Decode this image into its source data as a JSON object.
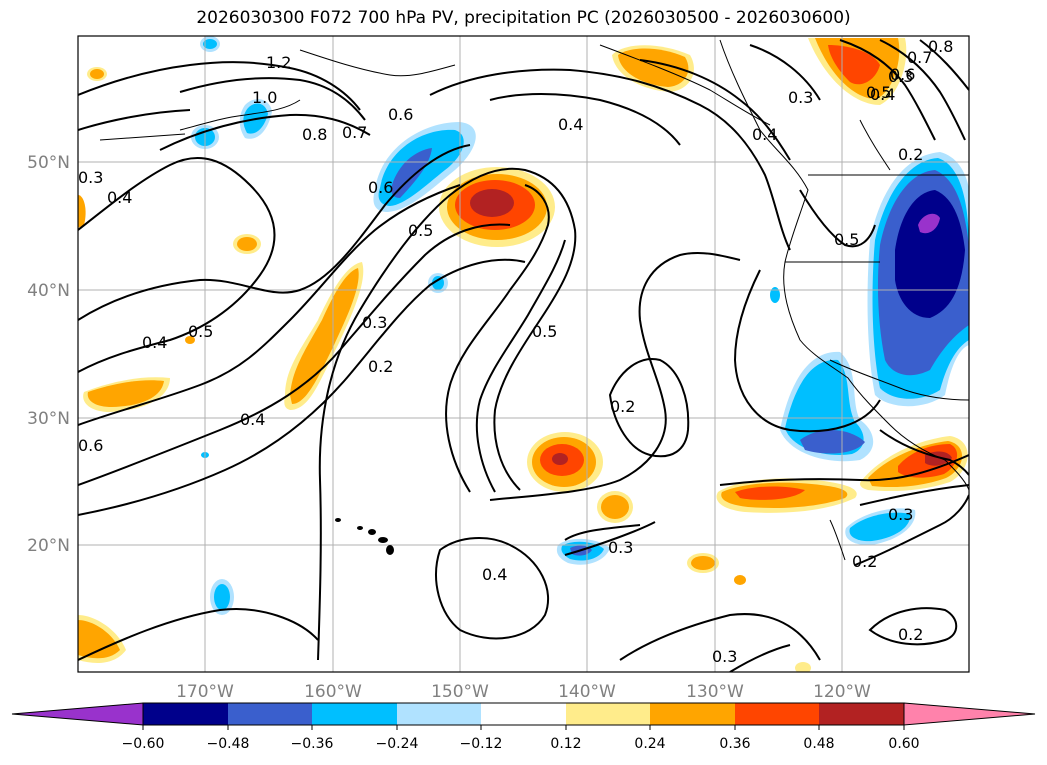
{
  "title": "2026030300 F072 700 hPa PV, precipitation PC (2026030500 - 2026030600)",
  "axes": {
    "lat_ticks": [
      "50°N",
      "40°N",
      "30°N",
      "20°N"
    ],
    "lon_ticks": [
      "170°W",
      "160°W",
      "150°W",
      "140°W",
      "130°W",
      "120°W"
    ]
  },
  "colorbar": {
    "colors": [
      "#9932cc",
      "#00008b",
      "#3a5fcd",
      "#00bfff",
      "#b0e2ff",
      "#ffffff",
      "#ffec8b",
      "#ffa500",
      "#ff4500",
      "#b22222",
      "#ff82ab"
    ],
    "ticks": [
      "−0.60",
      "−0.48",
      "−0.36",
      "−0.24",
      "−0.12",
      "0.12",
      "0.24",
      "0.36",
      "0.48",
      "0.60"
    ]
  },
  "contour_labels": [
    "1.2",
    "1.0",
    "0.8",
    "0.7",
    "0.6",
    "0.4",
    "0.3",
    "0.4",
    "0.6",
    "0.5",
    "0.4",
    "0.5",
    "0.3",
    "0.2",
    "0.4",
    "0.6",
    "0.5",
    "0.2",
    "0.4",
    "0.3",
    "0.2",
    "0.3",
    "0.3",
    "0.2",
    "0.5",
    "0.3",
    "0.4",
    "0.5",
    "0.6",
    "0.7",
    "0.8",
    "0.3",
    "0.4",
    "0.2"
  ]
}
